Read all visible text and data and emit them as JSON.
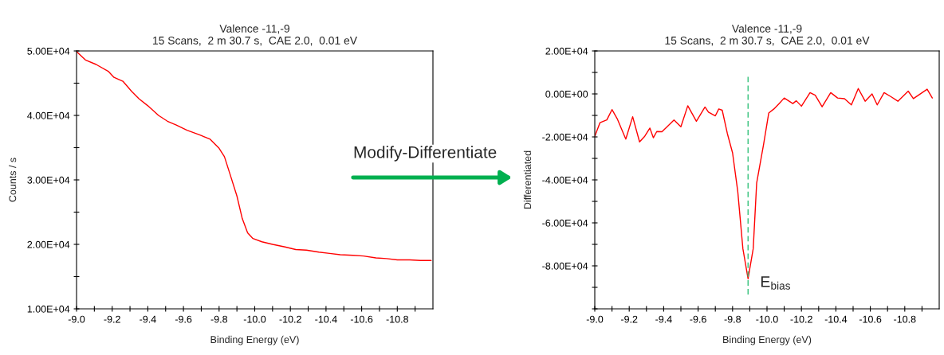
{
  "chart_data": [
    {
      "type": "line",
      "title": "Valence -11,-9\n15 Scans,  2 m 30.7 s,  CAE 2.0,  0.01 eV",
      "xlabel": "Binding Energy (eV)",
      "ylabel": "Counts / s",
      "xlim": [
        -9.0,
        -11.0
      ],
      "ylim": [
        10000,
        50000
      ],
      "xticks": [
        {
          "value": -9.0,
          "label": "-9.0"
        },
        {
          "value": -9.1,
          "label": null
        },
        -9.2,
        {
          "value": -9.3,
          "label": null
        },
        -9.4,
        {
          "value": -9.5,
          "label": null
        },
        -9.6,
        {
          "value": -9.7,
          "label": null
        },
        -9.8,
        {
          "value": -9.9,
          "label": null
        },
        {
          "value": -10.0,
          "label": "-10.0"
        },
        {
          "value": -10.1,
          "label": null
        },
        -10.2,
        {
          "value": -10.3,
          "label": null
        },
        -10.4,
        {
          "value": -10.5,
          "label": null
        },
        -10.6,
        {
          "value": -10.7,
          "label": null
        },
        -10.8,
        {
          "value": -10.9,
          "label": null
        }
      ],
      "yticks": [
        {
          "value": 10000,
          "label": "1.00E+04"
        },
        {
          "value": 15000,
          "label": null
        },
        {
          "value": 20000,
          "label": "2.00E+04"
        },
        {
          "value": 25000,
          "label": null
        },
        {
          "value": 30000,
          "label": "3.00E+04"
        },
        {
          "value": 35000,
          "label": null
        },
        {
          "value": 40000,
          "label": "4.00E+04"
        },
        {
          "value": 45000,
          "label": null
        },
        {
          "value": 50000,
          "label": "5.00E+04"
        }
      ],
      "annotations": [
        "Modify-Differentiate"
      ],
      "series": [
        {
          "color": "#ff0000",
          "x": [
            -9.0,
            -9.05,
            -9.11,
            -9.18,
            -9.21,
            -9.26,
            -9.31,
            -9.35,
            -9.4,
            -9.46,
            -9.51,
            -9.56,
            -9.62,
            -9.69,
            -9.75,
            -9.8,
            -9.83,
            -9.86,
            -9.9,
            -9.93,
            -9.96,
            -9.99,
            -10.04,
            -10.1,
            -10.17,
            -10.23,
            -10.29,
            -10.36,
            -10.42,
            -10.48,
            -10.55,
            -10.61,
            -10.68,
            -10.74,
            -10.8,
            -10.87,
            -10.93,
            -10.99
          ],
          "values": [
            49900,
            48600,
            47900,
            46800,
            45900,
            45300,
            43700,
            42600,
            41500,
            40000,
            39100,
            38500,
            37700,
            37000,
            36300,
            34900,
            33600,
            31000,
            27500,
            24000,
            21800,
            20900,
            20400,
            20000,
            19600,
            19200,
            19100,
            18800,
            18600,
            18400,
            18300,
            18200,
            17900,
            17800,
            17600,
            17600,
            17500,
            17500
          ]
        }
      ]
    },
    {
      "type": "line",
      "title": "Valence -11,-9\n15 Scans,  2 m 30.7 s,  CAE 2.0,  0.01 eV",
      "xlabel": "Binding Energy (eV)",
      "ylabel": "Differentiated",
      "xlim": [
        -9.0,
        -11.0
      ],
      "ylim": [
        -100000,
        20000
      ],
      "xticks": [
        {
          "value": -9.0,
          "label": "-9.0"
        },
        {
          "value": -9.1,
          "label": null
        },
        -9.2,
        {
          "value": -9.3,
          "label": null
        },
        -9.4,
        {
          "value": -9.5,
          "label": null
        },
        -9.6,
        {
          "value": -9.7,
          "label": null
        },
        -9.8,
        {
          "value": -9.9,
          "label": null
        },
        {
          "value": -10.0,
          "label": "-10.0"
        },
        {
          "value": -10.1,
          "label": null
        },
        -10.2,
        {
          "value": -10.3,
          "label": null
        },
        -10.4,
        {
          "value": -10.5,
          "label": null
        },
        -10.6,
        {
          "value": -10.7,
          "label": null
        },
        -10.8,
        {
          "value": -10.9,
          "label": null
        }
      ],
      "yticks": [
        {
          "value": -100000,
          "label": null
        },
        {
          "value": -90000,
          "label": null
        },
        {
          "value": -80000,
          "label": "-8.00E+04"
        },
        {
          "value": -70000,
          "label": null
        },
        {
          "value": -60000,
          "label": "-6.00E+04"
        },
        {
          "value": -50000,
          "label": null
        },
        {
          "value": -40000,
          "label": "-4.00E+04"
        },
        {
          "value": -30000,
          "label": null
        },
        {
          "value": -20000,
          "label": "-2.00E+04"
        },
        {
          "value": -10000,
          "label": null
        },
        {
          "value": 0,
          "label": "0.00E+00"
        },
        {
          "value": 10000,
          "label": null
        },
        {
          "value": 20000,
          "label": "2.00E+04"
        }
      ],
      "annotations": [
        "E$_{bias}$"
      ],
      "series": [
        {
          "color": "#ff0000",
          "x": [
            -9.0,
            -9.03,
            -9.07,
            -9.1,
            -9.13,
            -9.18,
            -9.22,
            -9.26,
            -9.29,
            -9.32,
            -9.34,
            -9.36,
            -9.39,
            -9.42,
            -9.46,
            -9.5,
            -9.54,
            -9.59,
            -9.64,
            -9.66,
            -9.7,
            -9.72,
            -9.74,
            -9.77,
            -9.8,
            -9.83,
            -9.86,
            -9.89,
            -9.92,
            -9.94,
            -9.98,
            -10.01,
            -10.04,
            -10.07,
            -10.1,
            -10.15,
            -10.17,
            -10.2,
            -10.25,
            -10.28,
            -10.32,
            -10.37,
            -10.41,
            -10.45,
            -10.49,
            -10.53,
            -10.57,
            -10.61,
            -10.64,
            -10.68,
            -10.72,
            -10.76,
            -10.82,
            -10.85,
            -10.93,
            -10.96
          ],
          "values": [
            -19700,
            -13400,
            -12100,
            -7300,
            -11500,
            -21000,
            -10600,
            -22300,
            -19700,
            -15900,
            -20400,
            -17500,
            -17600,
            -15300,
            -12100,
            -15300,
            -5500,
            -12700,
            -6100,
            -8500,
            -10200,
            -7000,
            -7600,
            -18500,
            -27400,
            -45200,
            -72000,
            -86000,
            -72000,
            -41400,
            -23600,
            -8900,
            -7000,
            -4500,
            -1900,
            -4500,
            -3200,
            -5700,
            600,
            -600,
            -6000,
            600,
            -1900,
            -2200,
            -5100,
            2500,
            -3400,
            0,
            -5100,
            600,
            -1300,
            -3400,
            1300,
            -2200,
            2200,
            -1900
          ]
        },
        {
          "color": "#33c07a",
          "line_style": "dashed",
          "x": [
            -9.89,
            -9.89
          ],
          "values": [
            8000,
            -94000
          ]
        }
      ]
    }
  ]
}
